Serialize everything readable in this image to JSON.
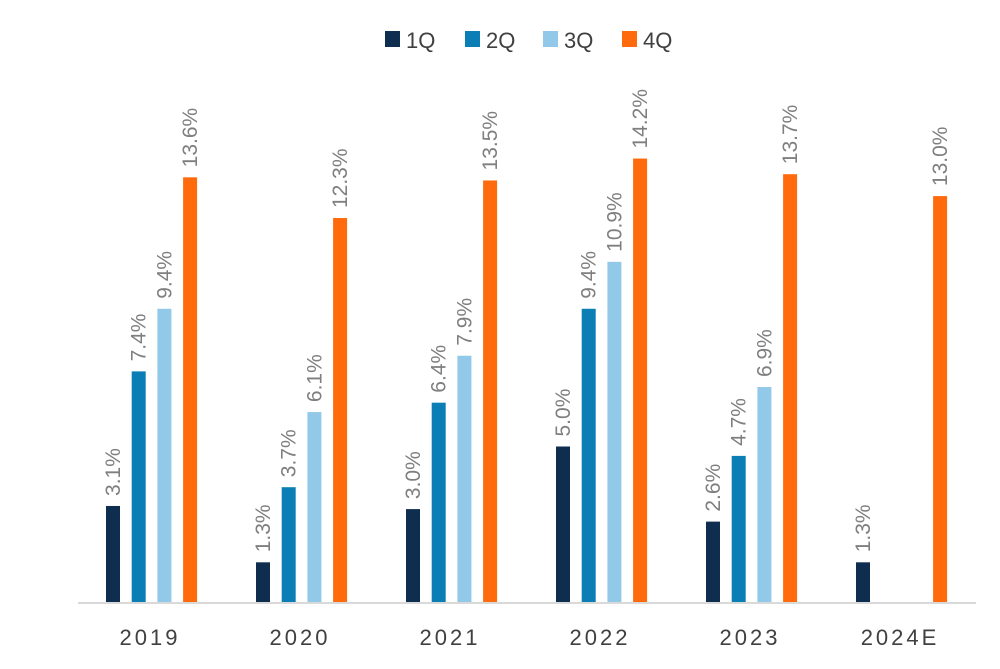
{
  "chart_data": {
    "type": "bar",
    "title": "",
    "xlabel": "",
    "ylabel": "",
    "ylim": [
      0,
      15.5
    ],
    "grid": false,
    "legend_position": "top-center",
    "categories": [
      "2019",
      "2020",
      "2021",
      "2022",
      "2023",
      "2024E"
    ],
    "series": [
      {
        "name": "1Q",
        "color": "#0e2d4f",
        "values": [
          3.1,
          1.3,
          3.0,
          5.0,
          2.6,
          1.3
        ],
        "labels": [
          "3.1%",
          "1.3%",
          "3.0%",
          "5.0%",
          "2.6%",
          "1.3%"
        ]
      },
      {
        "name": "2Q",
        "color": "#0b7fb5",
        "values": [
          7.4,
          3.7,
          6.4,
          9.4,
          4.7,
          null
        ],
        "labels": [
          "7.4%",
          "3.7%",
          "6.4%",
          "9.4%",
          "4.7%",
          null
        ]
      },
      {
        "name": "3Q",
        "color": "#92c9e8",
        "values": [
          9.4,
          6.1,
          7.9,
          10.9,
          6.9,
          null
        ],
        "labels": [
          "9.4%",
          "6.1%",
          "7.9%",
          "10.9%",
          "6.9%",
          null
        ]
      },
      {
        "name": "4Q",
        "color": "#ff6a0d",
        "values": [
          13.6,
          12.3,
          13.5,
          14.2,
          13.7,
          13.0
        ],
        "labels": [
          "13.6%",
          "12.3%",
          "13.5%",
          "14.2%",
          "13.7%",
          "13.0%"
        ]
      }
    ]
  }
}
